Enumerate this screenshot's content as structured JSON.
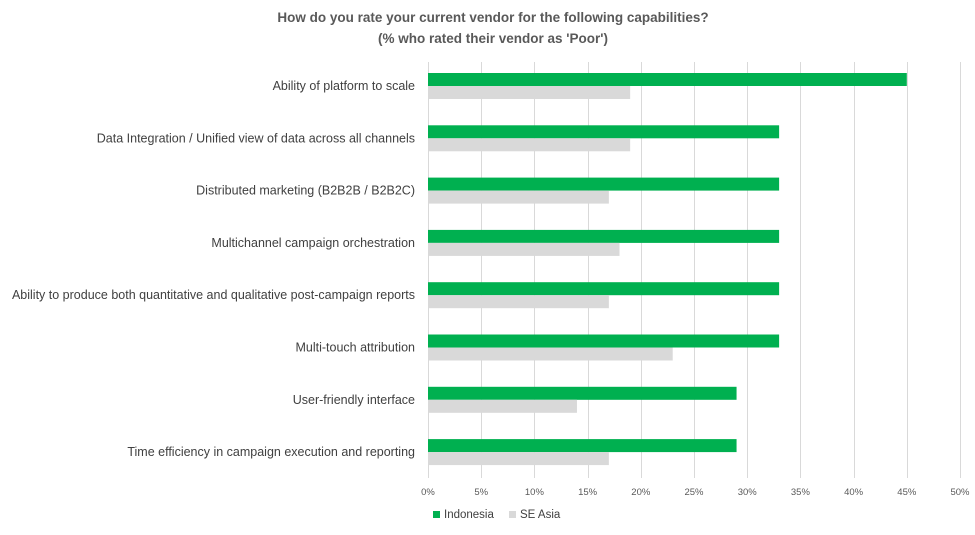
{
  "chart_data": {
    "type": "bar",
    "orientation": "horizontal",
    "title": "How do you rate your current vendor for the following capabilities?",
    "subtitle": "(% who rated their vendor as 'Poor')",
    "categories": [
      "Ability of platform to scale",
      "Data Integration / Unified view of data across all channels",
      "Distributed marketing (B2B2B / B2B2C)",
      "Multichannel campaign orchestration",
      "Ability to produce both quantitative and qualitative post-campaign reports",
      "Multi-touch attribution",
      "User-friendly interface",
      "Time efficiency in campaign execution and reporting"
    ],
    "series": [
      {
        "name": "Indonesia",
        "color": "#00b050",
        "values": [
          45,
          33,
          33,
          33,
          33,
          33,
          29,
          29
        ]
      },
      {
        "name": "SE Asia",
        "color": "#d9d9d9",
        "values": [
          19,
          19,
          17,
          18,
          17,
          23,
          14,
          17
        ]
      }
    ],
    "xlim": [
      0,
      50
    ],
    "xticks": [
      0,
      5,
      10,
      15,
      20,
      25,
      30,
      35,
      40,
      45,
      50
    ],
    "tick_labels": [
      "0%",
      "5%",
      "10%",
      "15%",
      "20%",
      "25%",
      "30%",
      "35%",
      "40%",
      "45%",
      "50%"
    ],
    "grid": true,
    "legend_position": "bottom-center",
    "xlabel": "",
    "ylabel": ""
  }
}
